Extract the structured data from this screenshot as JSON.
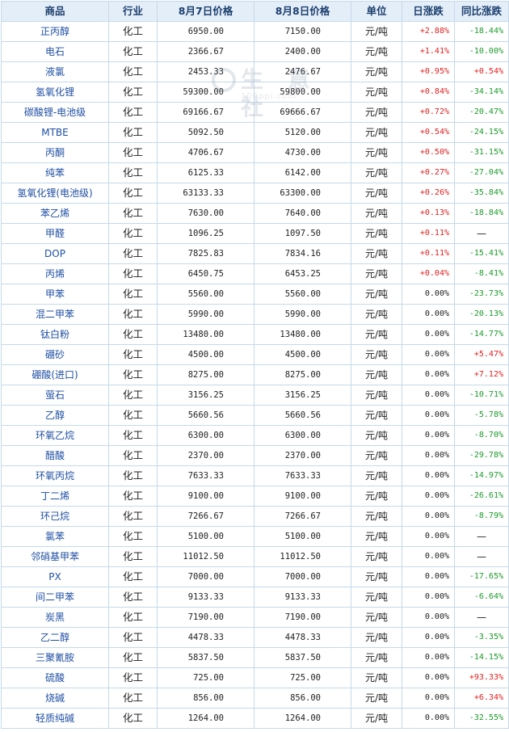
{
  "columns": [
    "商品",
    "行业",
    "8月7日价格",
    "8月8日价格",
    "单位",
    "日涨跌",
    "同比涨跌"
  ],
  "watermark": {
    "text": "生 意 社",
    "url": "100ppi.com"
  },
  "rows": [
    {
      "name": "正丙醇",
      "industry": "化工",
      "p1": "6950.00",
      "p2": "7150.00",
      "unit": "元/吨",
      "day": "+2.88%",
      "yoy": "-18.44%"
    },
    {
      "name": "电石",
      "industry": "化工",
      "p1": "2366.67",
      "p2": "2400.00",
      "unit": "元/吨",
      "day": "+1.41%",
      "yoy": "-10.00%"
    },
    {
      "name": "液氯",
      "industry": "化工",
      "p1": "2453.33",
      "p2": "2476.67",
      "unit": "元/吨",
      "day": "+0.95%",
      "yoy": "+0.54%"
    },
    {
      "name": "氢氧化锂",
      "industry": "化工",
      "p1": "59300.00",
      "p2": "59800.00",
      "unit": "元/吨",
      "day": "+0.84%",
      "yoy": "-34.14%"
    },
    {
      "name": "碳酸锂-电池级",
      "industry": "化工",
      "p1": "69166.67",
      "p2": "69666.67",
      "unit": "元/吨",
      "day": "+0.72%",
      "yoy": "-20.47%"
    },
    {
      "name": "MTBE",
      "industry": "化工",
      "p1": "5092.50",
      "p2": "5120.00",
      "unit": "元/吨",
      "day": "+0.54%",
      "yoy": "-24.15%"
    },
    {
      "name": "丙酮",
      "industry": "化工",
      "p1": "4706.67",
      "p2": "4730.00",
      "unit": "元/吨",
      "day": "+0.50%",
      "yoy": "-31.15%"
    },
    {
      "name": "纯苯",
      "industry": "化工",
      "p1": "6125.33",
      "p2": "6142.00",
      "unit": "元/吨",
      "day": "+0.27%",
      "yoy": "-27.04%"
    },
    {
      "name": "氢氧化锂(电池级)",
      "industry": "化工",
      "p1": "63133.33",
      "p2": "63300.00",
      "unit": "元/吨",
      "day": "+0.26%",
      "yoy": "-35.84%"
    },
    {
      "name": "苯乙烯",
      "industry": "化工",
      "p1": "7630.00",
      "p2": "7640.00",
      "unit": "元/吨",
      "day": "+0.13%",
      "yoy": "-18.84%"
    },
    {
      "name": "甲醛",
      "industry": "化工",
      "p1": "1096.25",
      "p2": "1097.50",
      "unit": "元/吨",
      "day": "+0.11%",
      "yoy": "—"
    },
    {
      "name": "DOP",
      "industry": "化工",
      "p1": "7825.83",
      "p2": "7834.16",
      "unit": "元/吨",
      "day": "+0.11%",
      "yoy": "-15.41%"
    },
    {
      "name": "丙烯",
      "industry": "化工",
      "p1": "6450.75",
      "p2": "6453.25",
      "unit": "元/吨",
      "day": "+0.04%",
      "yoy": "-8.41%"
    },
    {
      "name": "甲苯",
      "industry": "化工",
      "p1": "5560.00",
      "p2": "5560.00",
      "unit": "元/吨",
      "day": "0.00%",
      "yoy": "-23.73%"
    },
    {
      "name": "混二甲苯",
      "industry": "化工",
      "p1": "5990.00",
      "p2": "5990.00",
      "unit": "元/吨",
      "day": "0.00%",
      "yoy": "-20.13%"
    },
    {
      "name": "钛白粉",
      "industry": "化工",
      "p1": "13480.00",
      "p2": "13480.00",
      "unit": "元/吨",
      "day": "0.00%",
      "yoy": "-14.77%"
    },
    {
      "name": "硼砂",
      "industry": "化工",
      "p1": "4500.00",
      "p2": "4500.00",
      "unit": "元/吨",
      "day": "0.00%",
      "yoy": "+5.47%"
    },
    {
      "name": "硼酸(进口)",
      "industry": "化工",
      "p1": "8275.00",
      "p2": "8275.00",
      "unit": "元/吨",
      "day": "0.00%",
      "yoy": "+7.12%"
    },
    {
      "name": "萤石",
      "industry": "化工",
      "p1": "3156.25",
      "p2": "3156.25",
      "unit": "元/吨",
      "day": "0.00%",
      "yoy": "-10.71%"
    },
    {
      "name": "乙醇",
      "industry": "化工",
      "p1": "5660.56",
      "p2": "5660.56",
      "unit": "元/吨",
      "day": "0.00%",
      "yoy": "-5.78%"
    },
    {
      "name": "环氧乙烷",
      "industry": "化工",
      "p1": "6300.00",
      "p2": "6300.00",
      "unit": "元/吨",
      "day": "0.00%",
      "yoy": "-8.70%"
    },
    {
      "name": "醋酸",
      "industry": "化工",
      "p1": "2370.00",
      "p2": "2370.00",
      "unit": "元/吨",
      "day": "0.00%",
      "yoy": "-29.78%"
    },
    {
      "name": "环氧丙烷",
      "industry": "化工",
      "p1": "7633.33",
      "p2": "7633.33",
      "unit": "元/吨",
      "day": "0.00%",
      "yoy": "-14.97%"
    },
    {
      "name": "丁二烯",
      "industry": "化工",
      "p1": "9100.00",
      "p2": "9100.00",
      "unit": "元/吨",
      "day": "0.00%",
      "yoy": "-26.61%"
    },
    {
      "name": "环己烷",
      "industry": "化工",
      "p1": "7266.67",
      "p2": "7266.67",
      "unit": "元/吨",
      "day": "0.00%",
      "yoy": "-8.79%"
    },
    {
      "name": "氯苯",
      "industry": "化工",
      "p1": "5100.00",
      "p2": "5100.00",
      "unit": "元/吨",
      "day": "0.00%",
      "yoy": "—"
    },
    {
      "name": "邻硝基甲苯",
      "industry": "化工",
      "p1": "11012.50",
      "p2": "11012.50",
      "unit": "元/吨",
      "day": "0.00%",
      "yoy": "—"
    },
    {
      "name": "PX",
      "industry": "化工",
      "p1": "7000.00",
      "p2": "7000.00",
      "unit": "元/吨",
      "day": "0.00%",
      "yoy": "-17.65%"
    },
    {
      "name": "间二甲苯",
      "industry": "化工",
      "p1": "9133.33",
      "p2": "9133.33",
      "unit": "元/吨",
      "day": "0.00%",
      "yoy": "-6.64%"
    },
    {
      "name": "炭黑",
      "industry": "化工",
      "p1": "7190.00",
      "p2": "7190.00",
      "unit": "元/吨",
      "day": "0.00%",
      "yoy": "—"
    },
    {
      "name": "乙二醇",
      "industry": "化工",
      "p1": "4478.33",
      "p2": "4478.33",
      "unit": "元/吨",
      "day": "0.00%",
      "yoy": "-3.35%"
    },
    {
      "name": "三聚氰胺",
      "industry": "化工",
      "p1": "5837.50",
      "p2": "5837.50",
      "unit": "元/吨",
      "day": "0.00%",
      "yoy": "-14.15%"
    },
    {
      "name": "硫酸",
      "industry": "化工",
      "p1": "725.00",
      "p2": "725.00",
      "unit": "元/吨",
      "day": "0.00%",
      "yoy": "+93.33%"
    },
    {
      "name": "烧碱",
      "industry": "化工",
      "p1": "856.00",
      "p2": "856.00",
      "unit": "元/吨",
      "day": "0.00%",
      "yoy": "+6.34%"
    },
    {
      "name": "轻质纯碱",
      "industry": "化工",
      "p1": "1264.00",
      "p2": "1264.00",
      "unit": "元/吨",
      "day": "0.00%",
      "yoy": "-32.55%"
    }
  ],
  "colors": {
    "up": "#e02020",
    "down": "#1b9a2a",
    "header_bg": "#e4eef8",
    "border": "#c5d9ea",
    "name_link": "#1f4fa3"
  }
}
